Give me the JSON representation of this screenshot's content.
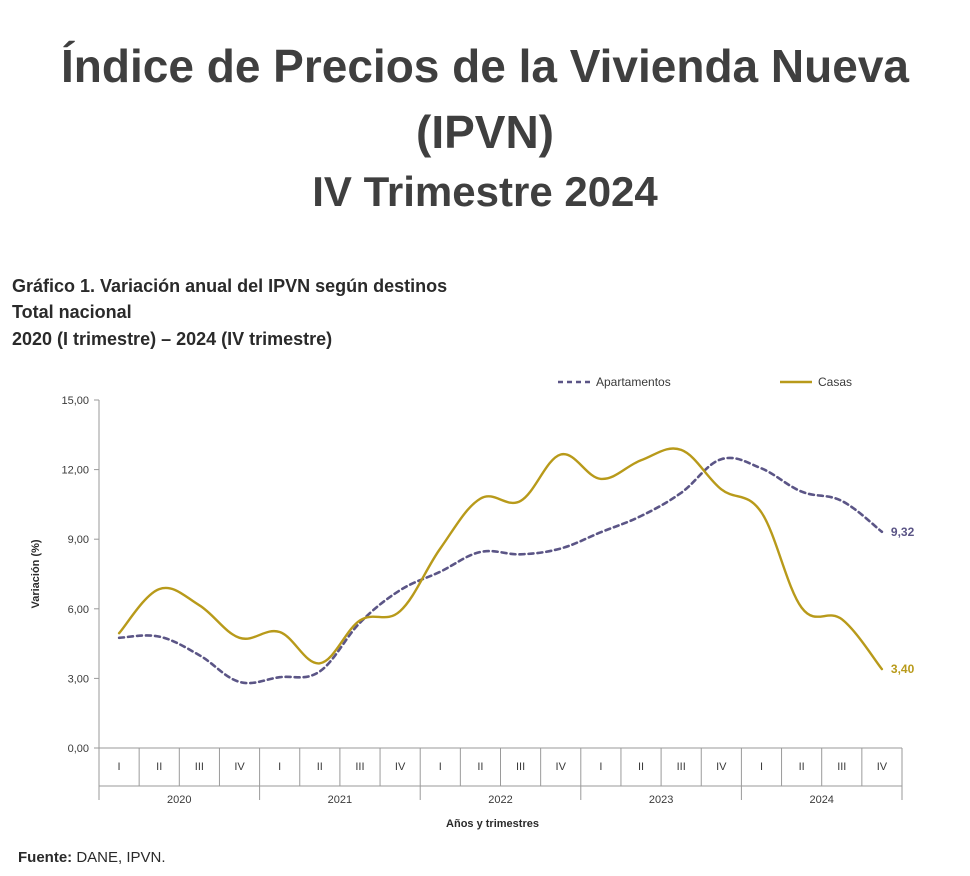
{
  "header": {
    "title_line1": "Índice de Precios de la Vivienda Nueva",
    "title_line2": "(IPVN)",
    "title_line3": "IV Trimestre 2024"
  },
  "caption": {
    "line1": "Gráfico 1. Variación anual del IPVN según destinos",
    "line2": "Total nacional",
    "line3": "2020 (I trimestre) – 2024 (IV trimestre)"
  },
  "chart_data": {
    "type": "line",
    "ylabel": "Variación (%)",
    "xlabel": "Años y trimestres",
    "ylim": [
      0,
      15
    ],
    "yticks": [
      0,
      3,
      6,
      9,
      12,
      15
    ],
    "ytick_labels": [
      "0,00",
      "3,00",
      "6,00",
      "9,00",
      "12,00",
      "15,00"
    ],
    "quarters": [
      "I",
      "II",
      "III",
      "IV",
      "I",
      "II",
      "III",
      "IV",
      "I",
      "II",
      "III",
      "IV",
      "I",
      "II",
      "III",
      "IV",
      "I",
      "II",
      "III",
      "IV"
    ],
    "years": [
      "2020",
      "2021",
      "2022",
      "2023",
      "2024"
    ],
    "series": [
      {
        "name": "Apartamentos",
        "style": "dashed",
        "color": "#5b5586",
        "values": [
          4.75,
          4.8,
          4.0,
          2.85,
          3.05,
          3.3,
          5.4,
          6.8,
          7.6,
          8.45,
          8.35,
          8.6,
          9.3,
          10.0,
          11.0,
          12.45,
          12.05,
          11.05,
          10.65,
          9.32
        ],
        "end_label": "9,32"
      },
      {
        "name": "Casas",
        "style": "solid",
        "color": "#b89a1a",
        "values": [
          4.95,
          6.85,
          6.15,
          4.75,
          5.0,
          3.65,
          5.5,
          5.9,
          8.6,
          10.75,
          10.65,
          12.65,
          11.6,
          12.4,
          12.85,
          11.15,
          10.15,
          6.05,
          5.55,
          3.4
        ],
        "end_label": "3,40"
      }
    ]
  },
  "source": {
    "label": "Fuente:",
    "text": " DANE, IPVN."
  }
}
